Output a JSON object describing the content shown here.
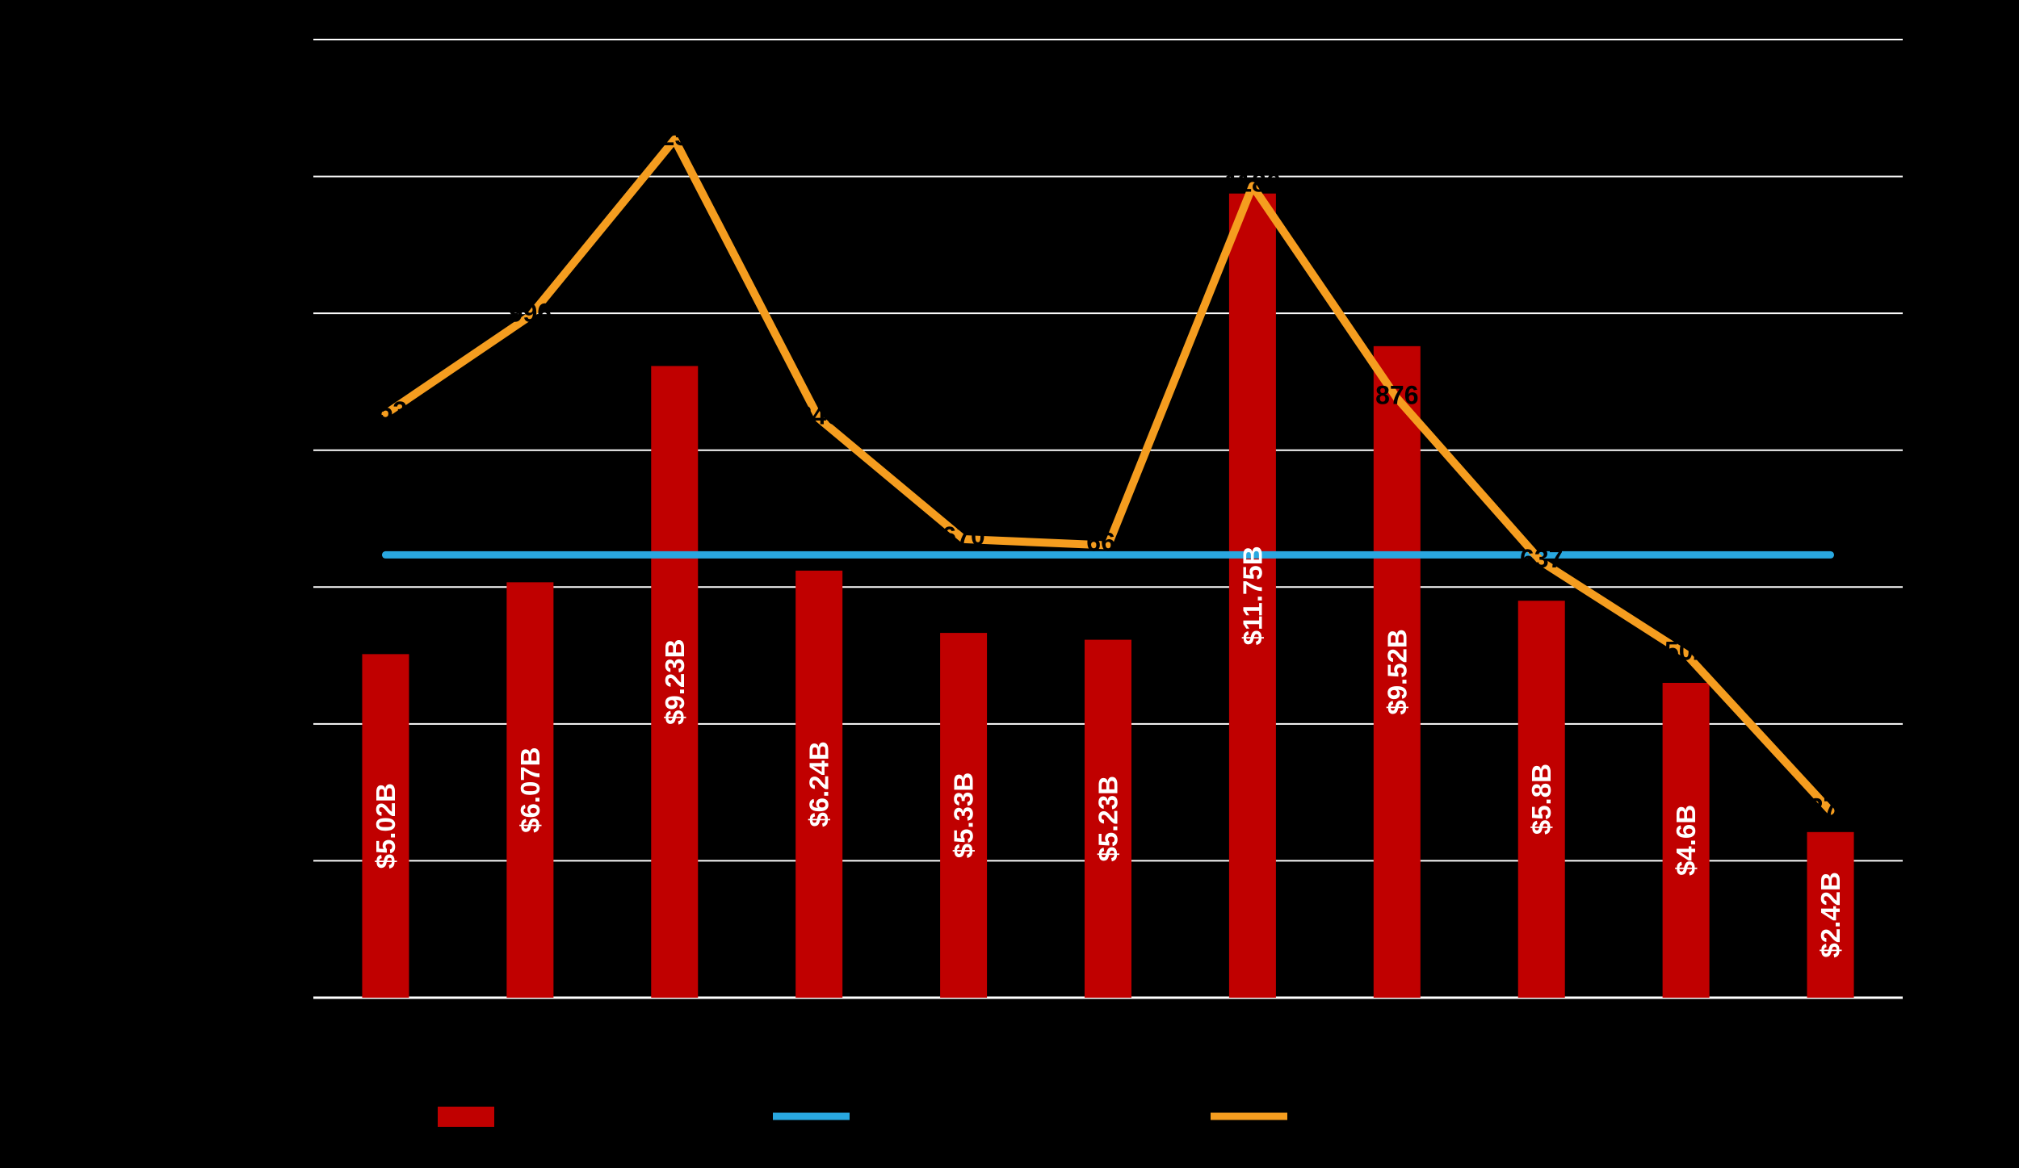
{
  "chart_data": {
    "type": "bar",
    "combo": "bar + line + constant average line",
    "title": "",
    "background_color": "#000000",
    "gridlines": {
      "on": true,
      "color": "#FFFFFF"
    },
    "primary_axis": {
      "min": 0,
      "max": 14,
      "step": 2,
      "labels_visible": false
    },
    "secondary_axis": {
      "min": 0,
      "max": 1400,
      "step": 200,
      "labels_visible": false
    },
    "categories": [
      "",
      "",
      "",
      "",
      "",
      "",
      "",
      "",
      "",
      "",
      ""
    ],
    "bar_series": {
      "color": "#C00000",
      "label_color": "#FFFFFF",
      "values_billions": [
        5.02,
        6.07,
        9.23,
        6.24,
        5.33,
        5.23,
        11.75,
        9.52,
        5.8,
        4.6,
        2.42
      ],
      "labels": [
        "$5.02B",
        "$6.07B",
        "$9.23B",
        "$6.24B",
        "$5.33B",
        "$5.23B",
        "$11.75B",
        "$9.52B",
        "$5.8B",
        "$4.6B",
        "$2.42B"
      ]
    },
    "line_series": {
      "color": "#F59D1F",
      "label_color": "#000000",
      "values": [
        853,
        996,
        1254,
        846,
        670,
        661,
        1186,
        876,
        637,
        502,
        273
      ],
      "labels": [
        "853",
        "996",
        "1254",
        "846",
        "670",
        "661",
        "1186",
        "876",
        "637",
        "502",
        "273"
      ]
    },
    "average_line": {
      "color": "#29A8E0",
      "value_billions": 6.47
    },
    "legend": [
      {
        "swatch": "bar",
        "color": "#C00000",
        "label": ""
      },
      {
        "swatch": "line",
        "color": "#29A8E0",
        "label": ""
      },
      {
        "swatch": "line",
        "color": "#F59D1F",
        "label": ""
      }
    ]
  }
}
